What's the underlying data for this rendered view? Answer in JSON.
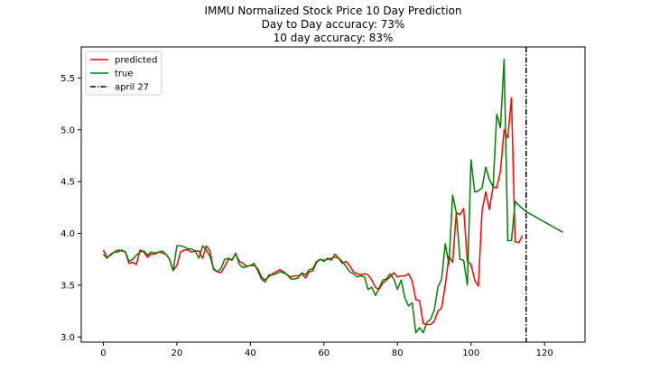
{
  "chart_data": {
    "type": "line",
    "title_lines": [
      "IMMU Normalized Stock Price 10 Day Prediction",
      "Day to Day accuracy: 73%",
      "10 day accuracy: 83%"
    ],
    "xlabel": "",
    "ylabel": "",
    "xlim": [
      -6,
      131
    ],
    "ylim": [
      2.95,
      5.8
    ],
    "xticks": [
      0,
      20,
      40,
      60,
      80,
      100,
      120
    ],
    "yticks": [
      3.0,
      3.5,
      4.0,
      4.5,
      5.0,
      5.5
    ],
    "ytick_labels": [
      "3.0",
      "3.5",
      "4.0",
      "4.5",
      "5.0",
      "5.5"
    ],
    "grid": false,
    "legend_position": "top-left",
    "series": [
      {
        "name": "predicted",
        "color": "#ff0000",
        "style": "solid",
        "points": [
          [
            0,
            3.84
          ],
          [
            1,
            3.77
          ],
          [
            2,
            3.79
          ],
          [
            3,
            3.82
          ],
          [
            4,
            3.84
          ],
          [
            5,
            3.83
          ],
          [
            6,
            3.82
          ],
          [
            7,
            3.71
          ],
          [
            8,
            3.72
          ],
          [
            9,
            3.7
          ],
          [
            10,
            3.84
          ],
          [
            11,
            3.82
          ],
          [
            12,
            3.77
          ],
          [
            13,
            3.8
          ],
          [
            14,
            3.8
          ],
          [
            15,
            3.82
          ],
          [
            16,
            3.81
          ],
          [
            17,
            3.8
          ],
          [
            18,
            3.75
          ],
          [
            19,
            3.64
          ],
          [
            20,
            3.69
          ],
          [
            21,
            3.82
          ],
          [
            22,
            3.84
          ],
          [
            23,
            3.84
          ],
          [
            24,
            3.82
          ],
          [
            25,
            3.83
          ],
          [
            26,
            3.83
          ],
          [
            27,
            3.76
          ],
          [
            28,
            3.88
          ],
          [
            29,
            3.83
          ],
          [
            30,
            3.65
          ],
          [
            31,
            3.63
          ],
          [
            32,
            3.62
          ],
          [
            33,
            3.68
          ],
          [
            34,
            3.75
          ],
          [
            35,
            3.75
          ],
          [
            36,
            3.8
          ],
          [
            37,
            3.73
          ],
          [
            38,
            3.71
          ],
          [
            39,
            3.68
          ],
          [
            40,
            3.69
          ],
          [
            41,
            3.69
          ],
          [
            42,
            3.66
          ],
          [
            43,
            3.58
          ],
          [
            44,
            3.55
          ],
          [
            45,
            3.58
          ],
          [
            46,
            3.61
          ],
          [
            47,
            3.63
          ],
          [
            48,
            3.65
          ],
          [
            49,
            3.63
          ],
          [
            50,
            3.6
          ],
          [
            51,
            3.58
          ],
          [
            52,
            3.59
          ],
          [
            53,
            3.59
          ],
          [
            54,
            3.61
          ],
          [
            55,
            3.57
          ],
          [
            56,
            3.63
          ],
          [
            57,
            3.64
          ],
          [
            58,
            3.72
          ],
          [
            59,
            3.75
          ],
          [
            60,
            3.74
          ],
          [
            61,
            3.75
          ],
          [
            62,
            3.76
          ],
          [
            63,
            3.77
          ],
          [
            64,
            3.76
          ],
          [
            65,
            3.71
          ],
          [
            66,
            3.73
          ],
          [
            67,
            3.69
          ],
          [
            68,
            3.63
          ],
          [
            69,
            3.61
          ],
          [
            70,
            3.6
          ],
          [
            71,
            3.61
          ],
          [
            72,
            3.6
          ],
          [
            73,
            3.55
          ],
          [
            74,
            3.48
          ],
          [
            75,
            3.46
          ],
          [
            76,
            3.52
          ],
          [
            77,
            3.55
          ],
          [
            78,
            3.58
          ],
          [
            79,
            3.62
          ],
          [
            80,
            3.58
          ],
          [
            81,
            3.59
          ],
          [
            82,
            3.59
          ],
          [
            83,
            3.61
          ],
          [
            84,
            3.54
          ],
          [
            85,
            3.36
          ],
          [
            86,
            3.35
          ],
          [
            87,
            3.13
          ],
          [
            88,
            3.12
          ],
          [
            89,
            3.12
          ],
          [
            90,
            3.15
          ],
          [
            91,
            3.25
          ],
          [
            92,
            3.28
          ],
          [
            93,
            3.5
          ],
          [
            94,
            3.78
          ],
          [
            95,
            3.72
          ],
          [
            96,
            4.2
          ],
          [
            97,
            4.18
          ],
          [
            98,
            4.24
          ],
          [
            99,
            3.73
          ],
          [
            100,
            3.7
          ],
          [
            101,
            3.55
          ],
          [
            102,
            3.49
          ],
          [
            103,
            4.22
          ],
          [
            104,
            4.4
          ],
          [
            105,
            4.23
          ],
          [
            106,
            4.45
          ],
          [
            107,
            4.44
          ],
          [
            108,
            4.6
          ],
          [
            109,
            5.0
          ],
          [
            110,
            4.92
          ],
          [
            111,
            5.31
          ],
          [
            112,
            3.92
          ],
          [
            113,
            3.91
          ],
          [
            114,
            3.98
          ]
        ]
      },
      {
        "name": "true",
        "color": "#008000",
        "style": "solid",
        "points": [
          [
            0,
            3.8
          ],
          [
            1,
            3.76
          ],
          [
            2,
            3.8
          ],
          [
            3,
            3.82
          ],
          [
            4,
            3.82
          ],
          [
            5,
            3.84
          ],
          [
            6,
            3.82
          ],
          [
            7,
            3.73
          ],
          [
            8,
            3.75
          ],
          [
            9,
            3.79
          ],
          [
            10,
            3.82
          ],
          [
            11,
            3.83
          ],
          [
            12,
            3.79
          ],
          [
            13,
            3.82
          ],
          [
            14,
            3.81
          ],
          [
            15,
            3.82
          ],
          [
            16,
            3.83
          ],
          [
            17,
            3.8
          ],
          [
            18,
            3.75
          ],
          [
            19,
            3.64
          ],
          [
            20,
            3.88
          ],
          [
            21,
            3.88
          ],
          [
            22,
            3.87
          ],
          [
            23,
            3.85
          ],
          [
            24,
            3.85
          ],
          [
            25,
            3.83
          ],
          [
            26,
            3.76
          ],
          [
            27,
            3.88
          ],
          [
            28,
            3.84
          ],
          [
            29,
            3.78
          ],
          [
            30,
            3.66
          ],
          [
            31,
            3.63
          ],
          [
            32,
            3.66
          ],
          [
            33,
            3.75
          ],
          [
            34,
            3.76
          ],
          [
            35,
            3.74
          ],
          [
            36,
            3.81
          ],
          [
            37,
            3.7
          ],
          [
            38,
            3.67
          ],
          [
            39,
            3.68
          ],
          [
            40,
            3.69
          ],
          [
            41,
            3.71
          ],
          [
            42,
            3.64
          ],
          [
            43,
            3.56
          ],
          [
            44,
            3.53
          ],
          [
            45,
            3.6
          ],
          [
            46,
            3.6
          ],
          [
            47,
            3.61
          ],
          [
            48,
            3.63
          ],
          [
            49,
            3.62
          ],
          [
            50,
            3.6
          ],
          [
            51,
            3.56
          ],
          [
            52,
            3.56
          ],
          [
            53,
            3.57
          ],
          [
            54,
            3.62
          ],
          [
            55,
            3.6
          ],
          [
            56,
            3.65
          ],
          [
            57,
            3.66
          ],
          [
            58,
            3.73
          ],
          [
            59,
            3.75
          ],
          [
            60,
            3.73
          ],
          [
            61,
            3.76
          ],
          [
            62,
            3.74
          ],
          [
            63,
            3.8
          ],
          [
            64,
            3.76
          ],
          [
            65,
            3.73
          ],
          [
            66,
            3.68
          ],
          [
            67,
            3.63
          ],
          [
            68,
            3.61
          ],
          [
            69,
            3.58
          ],
          [
            70,
            3.59
          ],
          [
            71,
            3.58
          ],
          [
            72,
            3.46
          ],
          [
            73,
            3.48
          ],
          [
            74,
            3.4
          ],
          [
            75,
            3.47
          ],
          [
            76,
            3.55
          ],
          [
            77,
            3.56
          ],
          [
            78,
            3.61
          ],
          [
            79,
            3.56
          ],
          [
            80,
            3.46
          ],
          [
            81,
            3.55
          ],
          [
            82,
            3.38
          ],
          [
            83,
            3.3
          ],
          [
            84,
            3.33
          ],
          [
            85,
            3.04
          ],
          [
            86,
            3.09
          ],
          [
            87,
            3.04
          ],
          [
            88,
            3.14
          ],
          [
            89,
            3.17
          ],
          [
            90,
            3.26
          ],
          [
            91,
            3.48
          ],
          [
            92,
            3.56
          ],
          [
            93,
            3.9
          ],
          [
            94,
            3.7
          ],
          [
            95,
            4.37
          ],
          [
            96,
            4.2
          ],
          [
            97,
            3.75
          ],
          [
            98,
            3.74
          ],
          [
            99,
            3.5
          ],
          [
            100,
            4.71
          ],
          [
            101,
            4.4
          ],
          [
            102,
            4.41
          ],
          [
            103,
            4.44
          ],
          [
            104,
            4.64
          ],
          [
            105,
            4.52
          ],
          [
            106,
            4.45
          ],
          [
            107,
            5.15
          ],
          [
            108,
            5.02
          ],
          [
            109,
            5.68
          ],
          [
            110,
            3.93
          ],
          [
            111,
            3.93
          ],
          [
            112,
            4.31
          ],
          [
            113,
            4.27
          ],
          [
            114,
            4.24
          ],
          [
            115,
            4.21
          ],
          [
            116,
            4.19
          ],
          [
            117,
            4.17
          ],
          [
            118,
            4.15
          ],
          [
            119,
            4.13
          ],
          [
            120,
            4.11
          ],
          [
            121,
            4.09
          ],
          [
            122,
            4.07
          ],
          [
            123,
            4.05
          ],
          [
            124,
            4.03
          ],
          [
            125,
            4.01
          ]
        ]
      },
      {
        "name": "april 27",
        "color": "#000000",
        "style": "dashdot",
        "vertical_x": 115
      }
    ]
  }
}
